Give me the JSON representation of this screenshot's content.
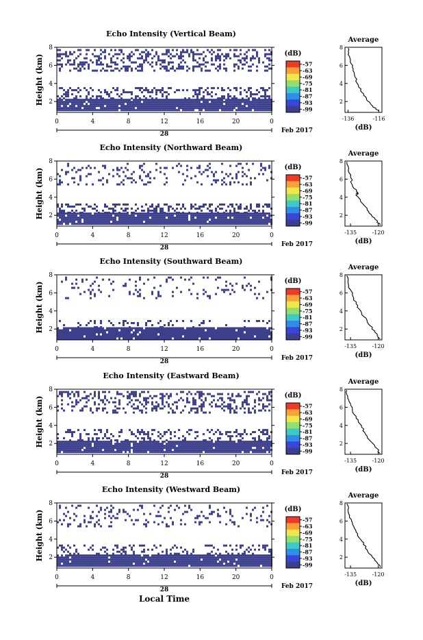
{
  "figure": {
    "xlabel": "Local Time",
    "date_label": "Feb 2017",
    "day_label": "28"
  },
  "colorbar": {
    "unit": "(dB)",
    "ticks": [
      "-57",
      "-63",
      "-69",
      "-75",
      "-81",
      "-87",
      "-93",
      "-99"
    ],
    "colors": [
      "#f03a28",
      "#f7a238",
      "#f0e84a",
      "#8fe070",
      "#3ec9c8",
      "#2f8fe8",
      "#3a46d8",
      "#3b3f8c"
    ]
  },
  "chart_data": [
    {
      "type": "heatmap",
      "title": "Echo Intensity (Vertical Beam)",
      "ylabel": "Height (km)",
      "xticks": [
        "0",
        "4",
        "8",
        "12",
        "16",
        "20",
        "0"
      ],
      "yticks": [
        "2",
        "4",
        "6",
        "8"
      ],
      "xlim": [
        0,
        24
      ],
      "ylim": [
        0.8,
        8
      ],
      "dominant_color": "#3b3f8c",
      "bands": [
        {
          "y0": 1.0,
          "y1": 2.3,
          "density": 0.95
        },
        {
          "y0": 2.3,
          "y1": 3.6,
          "density": 0.3
        },
        {
          "y0": 5.5,
          "y1": 7.8,
          "density": 0.35
        }
      ],
      "inset": {
        "title": "Average",
        "xlabel": "(dB)",
        "xticks": [
          "-136",
          "-116"
        ],
        "yticks": [
          "2",
          "4",
          "6",
          "8"
        ],
        "xlim": [
          -138,
          -114
        ],
        "ylim": [
          0.8,
          8
        ],
        "profile": [
          [
            -116,
            0.9
          ],
          [
            -120,
            1.5
          ],
          [
            -124,
            2.2
          ],
          [
            -127,
            3.0
          ],
          [
            -130,
            4.0
          ],
          [
            -132,
            5.2
          ],
          [
            -134,
            6.2
          ],
          [
            -136,
            7.2
          ],
          [
            -136,
            7.9
          ]
        ]
      }
    },
    {
      "type": "heatmap",
      "title": "Echo Intensity (Northward Beam)",
      "ylabel": "Height (km)",
      "xticks": [
        "0",
        "4",
        "8",
        "12",
        "16",
        "20",
        "0"
      ],
      "yticks": [
        "2",
        "4",
        "6",
        "8"
      ],
      "xlim": [
        0,
        24
      ],
      "ylim": [
        0.8,
        8
      ],
      "dominant_color": "#3b3f8c",
      "bands": [
        {
          "y0": 1.0,
          "y1": 2.3,
          "density": 0.95
        },
        {
          "y0": 2.3,
          "y1": 3.3,
          "density": 0.35
        },
        {
          "y0": 5.5,
          "y1": 7.8,
          "density": 0.15
        }
      ],
      "inset": {
        "title": "Average",
        "xlabel": "(dB)",
        "xticks": [
          "-135",
          "-120"
        ],
        "yticks": [
          "2",
          "4",
          "6",
          "8"
        ],
        "xlim": [
          -138,
          -118
        ],
        "ylim": [
          0.8,
          8
        ],
        "profile": [
          [
            -119,
            0.9
          ],
          [
            -122,
            1.7
          ],
          [
            -126,
            2.6
          ],
          [
            -129,
            3.4
          ],
          [
            -132,
            4.2
          ],
          [
            -131,
            4.5
          ],
          [
            -134,
            5.3
          ],
          [
            -135,
            6.3
          ],
          [
            -136,
            7.2
          ],
          [
            -137,
            7.9
          ]
        ]
      }
    },
    {
      "type": "heatmap",
      "title": "Echo Intensity (Southward Beam)",
      "ylabel": "Height (km)",
      "xticks": [
        "0",
        "4",
        "8",
        "12",
        "16",
        "20",
        "0"
      ],
      "yticks": [
        "2",
        "4",
        "6",
        "8"
      ],
      "xlim": [
        0,
        24
      ],
      "ylim": [
        0.8,
        8
      ],
      "dominant_color": "#3b3f8c",
      "bands": [
        {
          "y0": 1.0,
          "y1": 2.2,
          "density": 0.95
        },
        {
          "y0": 2.2,
          "y1": 3.0,
          "density": 0.15
        },
        {
          "y0": 5.5,
          "y1": 7.8,
          "density": 0.1
        }
      ],
      "inset": {
        "title": "Average",
        "xlabel": "(dB)",
        "xticks": [
          "-135",
          "-120"
        ],
        "yticks": [
          "2",
          "4",
          "6",
          "8"
        ],
        "xlim": [
          -138,
          -118
        ],
        "ylim": [
          0.8,
          8
        ],
        "profile": [
          [
            -119,
            0.9
          ],
          [
            -122,
            1.8
          ],
          [
            -126,
            2.8
          ],
          [
            -129,
            3.8
          ],
          [
            -132,
            4.8
          ],
          [
            -134,
            5.8
          ],
          [
            -136,
            6.8
          ],
          [
            -137,
            7.9
          ]
        ]
      }
    },
    {
      "type": "heatmap",
      "title": "Echo Intensity (Eastward Beam)",
      "ylabel": "Height (km)",
      "xticks": [
        "0",
        "4",
        "8",
        "12",
        "16",
        "20",
        "0"
      ],
      "yticks": [
        "2",
        "4",
        "6",
        "8"
      ],
      "xlim": [
        0,
        24
      ],
      "ylim": [
        0.8,
        8
      ],
      "dominant_color": "#3b3f8c",
      "bands": [
        {
          "y0": 1.0,
          "y1": 2.3,
          "density": 0.95
        },
        {
          "y0": 2.3,
          "y1": 3.6,
          "density": 0.3
        },
        {
          "y0": 5.5,
          "y1": 7.8,
          "density": 0.3
        }
      ],
      "inset": {
        "title": "Average",
        "xlabel": "(dB)",
        "xticks": [
          "-135",
          "-120"
        ],
        "yticks": [
          "2",
          "4",
          "6",
          "8"
        ],
        "xlim": [
          -138,
          -118
        ],
        "ylim": [
          0.8,
          8
        ],
        "profile": [
          [
            -119,
            0.9
          ],
          [
            -122,
            1.8
          ],
          [
            -126,
            2.8
          ],
          [
            -129,
            3.8
          ],
          [
            -132,
            4.8
          ],
          [
            -134,
            5.8
          ],
          [
            -136,
            6.8
          ],
          [
            -137,
            7.9
          ]
        ]
      }
    },
    {
      "type": "heatmap",
      "title": "Echo Intensity (Westward Beam)",
      "ylabel": "Height (km)",
      "xticks": [
        "0",
        "4",
        "8",
        "12",
        "16",
        "20",
        "0"
      ],
      "yticks": [
        "2",
        "4",
        "6",
        "8"
      ],
      "xlim": [
        0,
        24
      ],
      "ylim": [
        0.8,
        8
      ],
      "dominant_color": "#3b3f8c",
      "bands": [
        {
          "y0": 1.0,
          "y1": 2.3,
          "density": 0.95
        },
        {
          "y0": 2.3,
          "y1": 3.4,
          "density": 0.25
        },
        {
          "y0": 5.5,
          "y1": 7.8,
          "density": 0.15
        }
      ],
      "inset": {
        "title": "Average",
        "xlabel": "(dB)",
        "xticks": [
          "-135",
          "-120"
        ],
        "yticks": [
          "2",
          "4",
          "6",
          "8"
        ],
        "xlim": [
          -138,
          -118
        ],
        "ylim": [
          0.8,
          8
        ],
        "profile": [
          [
            -119,
            0.9
          ],
          [
            -122,
            1.8
          ],
          [
            -126,
            2.8
          ],
          [
            -129,
            3.8
          ],
          [
            -132,
            4.8
          ],
          [
            -134,
            5.8
          ],
          [
            -136,
            6.8
          ],
          [
            -137,
            7.9
          ]
        ]
      }
    }
  ]
}
